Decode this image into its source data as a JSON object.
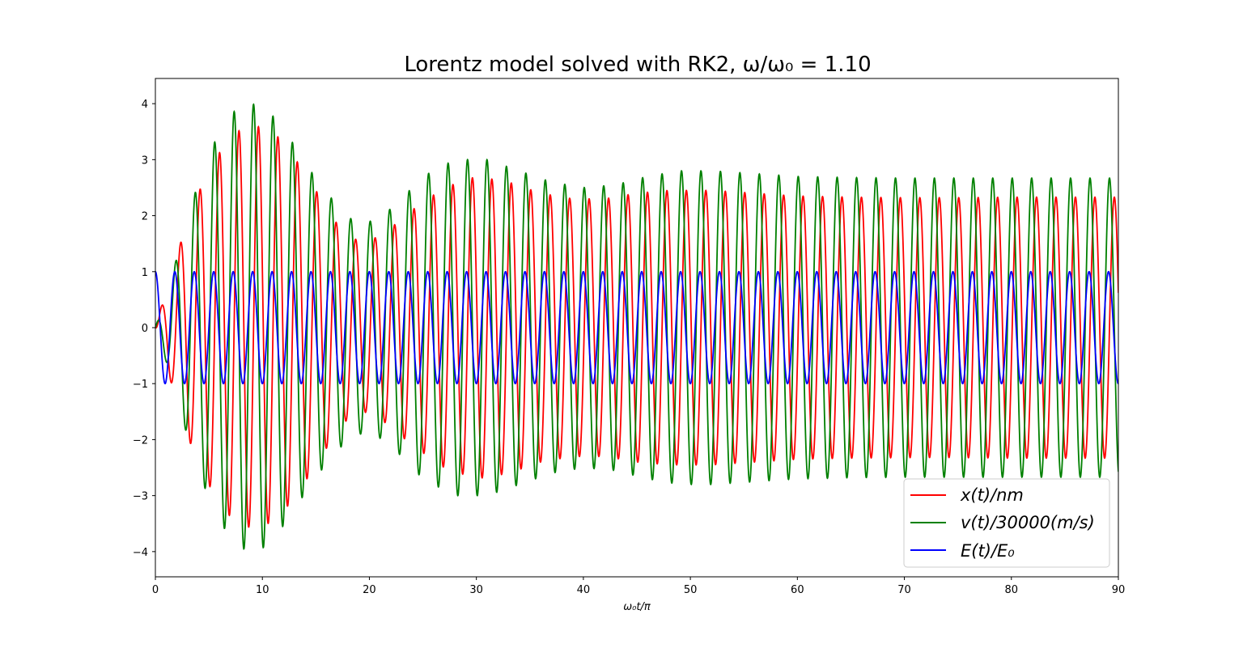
{
  "chart_data": {
    "type": "line",
    "title": "Lorentz model solved with RK2, ω/ω₀ = 1.10",
    "xlabel": "ω₀t/π",
    "ylabel": "",
    "xlim": [
      0,
      90
    ],
    "ylim": [
      -4.45,
      4.45
    ],
    "x_ticks": [
      0,
      10,
      20,
      30,
      40,
      50,
      60,
      70,
      80,
      90
    ],
    "y_ticks": [
      4,
      3,
      2,
      1,
      0,
      -1,
      -2,
      -3,
      -4
    ],
    "tick_labels_x": [
      "0",
      "10",
      "20",
      "30",
      "40",
      "50",
      "60",
      "70",
      "80",
      "90"
    ],
    "tick_labels_y": [
      "4",
      "3",
      "2",
      "1",
      "0",
      "−1",
      "−2",
      "−3",
      "−4"
    ],
    "grid": false,
    "legend_position": "lower-right",
    "model": {
      "omega_ratio": 1.1,
      "drive_period_x": 1.818
    },
    "series": [
      {
        "name": "x(t)/nm",
        "color": "#ff0000",
        "envelope": {
          "x": [
            0,
            1.5,
            3.5,
            5.5,
            7.5,
            9.5,
            11.5,
            13.5,
            15.5,
            17.5,
            19.5,
            21.5,
            24,
            27,
            30,
            33,
            36,
            39,
            42,
            45,
            48,
            52,
            56,
            60,
            65,
            70,
            75,
            80,
            85,
            90
          ],
          "y": [
            0,
            1.0,
            2.2,
            3.0,
            3.5,
            3.6,
            3.4,
            2.9,
            2.3,
            1.7,
            1.5,
            1.7,
            2.1,
            2.5,
            2.7,
            2.6,
            2.4,
            2.3,
            2.3,
            2.4,
            2.45,
            2.45,
            2.4,
            2.35,
            2.33,
            2.32,
            2.32,
            2.33,
            2.33,
            2.33
          ]
        }
      },
      {
        "name": "v(t)/30000(m/s)",
        "color": "#008000",
        "envelope": {
          "x": [
            0,
            1.5,
            3.5,
            5.5,
            7.5,
            9.0,
            10.5,
            12.5,
            14.5,
            16.5,
            18.5,
            20.5,
            22.5,
            25,
            28,
            31,
            34,
            37,
            40,
            43,
            46,
            49,
            52,
            56,
            60,
            65,
            70,
            75,
            80,
            85,
            90
          ],
          "y": [
            0,
            0.9,
            2.3,
            3.3,
            3.9,
            4.0,
            3.9,
            3.4,
            2.8,
            2.3,
            1.9,
            1.9,
            2.2,
            2.7,
            3.0,
            3.0,
            2.8,
            2.6,
            2.5,
            2.55,
            2.7,
            2.8,
            2.8,
            2.75,
            2.7,
            2.68,
            2.67,
            2.67,
            2.67,
            2.67,
            2.67
          ]
        }
      },
      {
        "name": "E(t)/E₀",
        "color": "#0000ff",
        "amplitude": 1.0
      }
    ]
  }
}
